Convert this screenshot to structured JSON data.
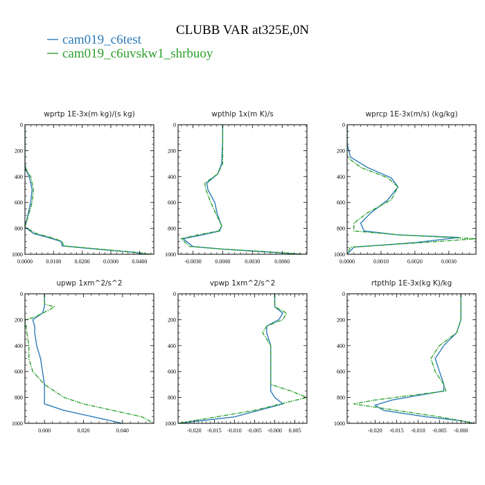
{
  "title": "CLUBB VAR at325E,0N",
  "colors": {
    "series1": "#2b7bba",
    "series2": "#2ca02c"
  },
  "legend": [
    {
      "label": "cam019_c6test",
      "color": "#2b7bba",
      "dashed": false
    },
    {
      "label": "cam019_c6uvskw1_shrbuoy",
      "color": "#2ca02c",
      "dashed": true
    }
  ],
  "chart_data": [
    {
      "type": "line",
      "title": "wprtp  1E-3x(m kg)/(s kg)",
      "xlim": [
        0,
        0.045
      ],
      "ylim": [
        1000,
        0
      ],
      "xticks": [
        0,
        0.01,
        0.02,
        0.03,
        0.04
      ],
      "xtick_labels": [
        "0.0000",
        "0.0100",
        "0.0200",
        "0.0300",
        "0.0400"
      ],
      "yticks": [
        0,
        200,
        400,
        600,
        800,
        1000
      ],
      "series": [
        {
          "name": "cam019_c6test",
          "x": [
            0,
            0,
            0.0003,
            0.0015,
            0.0025,
            0.002,
            0.001,
            0,
            0.003,
            0.008,
            0.0125,
            0.013,
            0.02,
            0.03,
            0.038,
            0.042
          ],
          "y": [
            0,
            300,
            350,
            400,
            500,
            600,
            700,
            790,
            840,
            870,
            900,
            935,
            950,
            970,
            985,
            1000
          ]
        },
        {
          "name": "cam019_c6uvskw1_shrbuoy",
          "x": [
            0,
            0,
            0.0005,
            0.002,
            0.003,
            0.0025,
            0.0012,
            0,
            0.004,
            0.009,
            0.013,
            0.0135,
            0.021,
            0.031,
            0.039,
            0.044
          ],
          "y": [
            0,
            300,
            350,
            400,
            500,
            600,
            700,
            790,
            840,
            870,
            900,
            935,
            950,
            970,
            985,
            1000
          ]
        }
      ]
    },
    {
      "type": "line",
      "title": "wpthlp  1x(m K)/s",
      "xlim": [
        -0.0045,
        0.0085
      ],
      "ylim": [
        1000,
        0
      ],
      "xticks": [
        -0.003,
        0,
        0.003,
        0.006
      ],
      "xtick_labels": [
        "-0.0030",
        "0.0000",
        "0.0030",
        "0.0060"
      ],
      "yticks": [
        0,
        200,
        400,
        600,
        800,
        1000
      ],
      "series": [
        {
          "name": "cam019_c6test",
          "x": [
            0,
            0,
            -0.0001,
            -0.0005,
            -0.0016,
            -0.0015,
            -0.0008,
            -0.0005,
            -0.0001,
            -0.0003,
            -0.002,
            -0.004,
            -0.003,
            0,
            0.004,
            0.008
          ],
          "y": [
            0,
            120,
            300,
            380,
            450,
            500,
            600,
            700,
            780,
            820,
            850,
            880,
            940,
            960,
            980,
            1000
          ]
        },
        {
          "name": "cam019_c6uvskw1_shrbuoy",
          "x": [
            0,
            0,
            0,
            -0.0005,
            -0.0018,
            -0.0017,
            -0.0012,
            -0.0006,
            -0.0001,
            -0.0004,
            -0.0025,
            -0.0042,
            -0.0033,
            0,
            0.0045,
            0.0082
          ],
          "y": [
            0,
            120,
            300,
            380,
            450,
            500,
            600,
            700,
            780,
            820,
            850,
            880,
            940,
            960,
            980,
            1000
          ]
        }
      ]
    },
    {
      "type": "line",
      "title": "wprcp  1E-3x(m/s) (kg/kg)",
      "xlim": [
        0,
        0.0038
      ],
      "ylim": [
        1000,
        0
      ],
      "xticks": [
        0,
        0.001,
        0.002,
        0.003
      ],
      "xtick_labels": [
        "0.0000",
        "0.0010",
        "0.0020",
        "0.0030"
      ],
      "yticks": [
        0,
        200,
        400,
        600,
        800,
        1000
      ],
      "series": [
        {
          "name": "cam019_c6test",
          "x": [
            0,
            0,
            0.0001,
            0.0006,
            0.0013,
            0.0015,
            0.0012,
            0.0007,
            0.0004,
            0.0005,
            0.0015,
            0.0033,
            0.002,
            0.0002,
            0
          ],
          "y": [
            0,
            150,
            250,
            330,
            410,
            480,
            580,
            680,
            760,
            820,
            850,
            870,
            910,
            945,
            1000
          ]
        },
        {
          "name": "cam019_c6uvskw1_shrbuoy",
          "x": [
            0,
            0,
            0,
            0.0004,
            0.0012,
            0.0015,
            0.0013,
            0.0006,
            0.0002,
            0.0002,
            0.0015,
            0.0038,
            0.0022,
            0.0001,
            0
          ],
          "y": [
            0,
            150,
            250,
            330,
            410,
            480,
            580,
            680,
            760,
            820,
            850,
            880,
            910,
            945,
            1000
          ]
        }
      ]
    },
    {
      "type": "line",
      "title": "upwp  1xm^2/s^2",
      "xlim": [
        -0.01,
        0.056
      ],
      "ylim": [
        1000,
        0
      ],
      "xticks": [
        0,
        0.02,
        0.04
      ],
      "xtick_labels": [
        "0.000",
        "0.020",
        "0.040"
      ],
      "yticks": [
        0,
        200,
        400,
        600,
        800,
        1000
      ],
      "series": [
        {
          "name": "cam019_c6test",
          "x": [
            0,
            0,
            -0.001,
            -0.004,
            -0.006,
            -0.005,
            -0.005,
            -0.004,
            -0.002,
            -0.001,
            0,
            0,
            0,
            0.01,
            0.025,
            0.04
          ],
          "y": [
            0,
            100,
            150,
            180,
            200,
            250,
            300,
            400,
            500,
            600,
            700,
            800,
            850,
            900,
            950,
            1000
          ]
        },
        {
          "name": "cam019_c6uvskw1_shrbuoy",
          "x": [
            0,
            0,
            0.005,
            0.003,
            -0.005,
            -0.01,
            -0.009,
            -0.008,
            -0.008,
            -0.006,
            0,
            0.01,
            0.02,
            0.035,
            0.05,
            0.056
          ],
          "y": [
            0,
            80,
            100,
            120,
            180,
            200,
            300,
            400,
            500,
            600,
            700,
            800,
            850,
            900,
            950,
            1000
          ]
        }
      ]
    },
    {
      "type": "line",
      "title": "vpwp  1xm^2/s^2",
      "xlim": [
        -0.024,
        0.008
      ],
      "ylim": [
        1000,
        0
      ],
      "xticks": [
        -0.02,
        -0.015,
        -0.01,
        -0.005,
        0,
        0.005
      ],
      "xtick_labels": [
        "-0.020",
        "-0.015",
        "-0.010",
        "-0.005",
        "-0.000",
        "0.005"
      ],
      "yticks": [
        0,
        200,
        400,
        600,
        800,
        1000
      ],
      "series": [
        {
          "name": "cam019_c6test",
          "x": [
            0,
            0,
            0.002,
            0.001,
            -0.002,
            -0.002,
            -0.001,
            -0.001,
            -0.001,
            -0.001,
            0,
            0.002,
            -0.01,
            -0.024
          ],
          "y": [
            0,
            100,
            150,
            200,
            250,
            300,
            400,
            600,
            700,
            750,
            800,
            850,
            950,
            1000
          ]
        },
        {
          "name": "cam019_c6uvskw1_shrbuoy",
          "x": [
            0,
            0,
            0.003,
            0.002,
            -0.002,
            -0.003,
            -0.001,
            -0.001,
            -0.001,
            0.004,
            0.008,
            -0.005,
            -0.024
          ],
          "y": [
            0,
            100,
            150,
            200,
            250,
            300,
            400,
            600,
            700,
            750,
            800,
            900,
            1000
          ]
        }
      ]
    },
    {
      "type": "line",
      "title": "rtpthlp  1E-3x(kg K)/kg",
      "xlim": [
        -0.0265,
        0.0035
      ],
      "ylim": [
        1000,
        0
      ],
      "xticks": [
        -0.02,
        -0.015,
        -0.01,
        -0.005,
        0
      ],
      "xtick_labels": [
        "-0.020",
        "-0.015",
        "-0.010",
        "-0.005",
        "-0.000"
      ],
      "yticks": [
        0,
        200,
        400,
        600,
        800,
        1000
      ],
      "series": [
        {
          "name": "cam019_c6test",
          "x": [
            0,
            0,
            -0.001,
            -0.004,
            -0.006,
            -0.005,
            -0.004,
            -0.004,
            -0.016,
            -0.02,
            -0.018,
            -0.008,
            0,
            0.003
          ],
          "y": [
            0,
            200,
            300,
            400,
            500,
            600,
            700,
            750,
            820,
            860,
            900,
            950,
            980,
            1000
          ]
        },
        {
          "name": "cam019_c6uvskw1_shrbuoy",
          "x": [
            0,
            0,
            -0.001,
            -0.005,
            -0.007,
            -0.006,
            -0.004,
            -0.0035,
            -0.02,
            -0.025,
            -0.015,
            -0.005,
            0,
            0.003
          ],
          "y": [
            0,
            200,
            300,
            400,
            500,
            600,
            700,
            750,
            820,
            850,
            900,
            950,
            980,
            1000
          ]
        }
      ]
    }
  ]
}
